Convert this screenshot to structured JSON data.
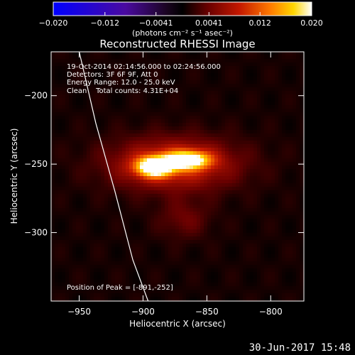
{
  "chart_data": {
    "type": "heatmap",
    "title": "Reconstructed RHESSI Image",
    "xlabel": "Heliocentric X (arcsec)",
    "ylabel": "Heliocentric Y (arcsec)",
    "xlim": [
      -972,
      -774
    ],
    "ylim": [
      -350,
      -168
    ],
    "x_ticks": [
      -950,
      -900,
      -850,
      -800
    ],
    "y_ticks": [
      -200,
      -250,
      -300
    ],
    "x_tick_labels": [
      "−950",
      "−900",
      "−850",
      "−800"
    ],
    "y_tick_labels": [
      "−200",
      "−250",
      "−300"
    ],
    "colorbar": {
      "range": [
        -0.02,
        0.02
      ],
      "ticks": [
        -0.02,
        -0.012,
        -0.0041,
        0.0041,
        0.012,
        0.02
      ],
      "tick_labels": [
        "−0.020",
        "−0.012",
        "−0.0041",
        "0.0041",
        "0.012",
        "0.020"
      ],
      "unit_label": "(photons cm⁻² s⁻¹ asec⁻²)"
    },
    "annotations": [
      "19-Oct-2014 02:14:56.000 to 02:24:56.000",
      "Detectors: 3F 6F 9F, Att 0",
      "Energy Range: 12.0 - 25.0 keV",
      "Clean    Total counts: 4.31E+04"
    ],
    "peak": {
      "x": -891,
      "y": -252,
      "label": "Position of Peak = [-891,-252]"
    },
    "sources": [
      {
        "x": -891,
        "y": -252,
        "sx": 10,
        "sy": 5,
        "amp": 0.02
      },
      {
        "x": -865,
        "y": -247,
        "sx": 12,
        "sy": 4.5,
        "amp": 0.0175
      },
      {
        "x": -876,
        "y": -250,
        "sx": 34,
        "sy": 13,
        "amp": 0.0095
      },
      {
        "x": -868,
        "y": -290,
        "sx": 14,
        "sy": 10,
        "amp": 0.0032
      }
    ],
    "limb_curve": [
      [
        -950,
        -168
      ],
      [
        -937,
        -220
      ],
      [
        -922,
        -270
      ],
      [
        -908,
        -320
      ],
      [
        -896,
        -350
      ]
    ]
  },
  "footer": {
    "date": "30-Jun-2017 15:48"
  }
}
